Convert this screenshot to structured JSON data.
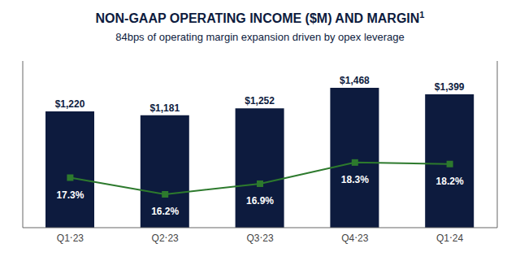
{
  "chart_data": {
    "type": "bar",
    "title": "NON-GAAP OPERATING INCOME ($M) AND MARGIN",
    "annotations": [
      "1"
    ],
    "subtitle": "84bps of operating margin expansion driven by opex leverage",
    "categories": [
      "Q1‧23",
      "Q2‧23",
      "Q3‧23",
      "Q4‧23",
      "Q1‧24"
    ],
    "series": [
      {
        "type": "bar",
        "color": "#0d1b3e",
        "values": [
          1220,
          1181,
          1252,
          1468,
          1399
        ],
        "value_labels": [
          "$1,220",
          "$1,181",
          "$1,252",
          "$1,468",
          "$1,399"
        ]
      },
      {
        "type": "line",
        "axis": "y2",
        "color": "#2d7a2d",
        "marker": "square",
        "values": [
          17.3,
          16.2,
          16.9,
          18.3,
          18.2
        ],
        "value_labels": [
          "17.3%",
          "16.2%",
          "16.9%",
          "18.3%",
          "18.2%"
        ]
      }
    ],
    "ylim": [
      0,
      1750
    ],
    "y2lim": [
      14.0,
      25.0
    ],
    "data_labels": true,
    "grid": false,
    "tick_labels": "x"
  }
}
